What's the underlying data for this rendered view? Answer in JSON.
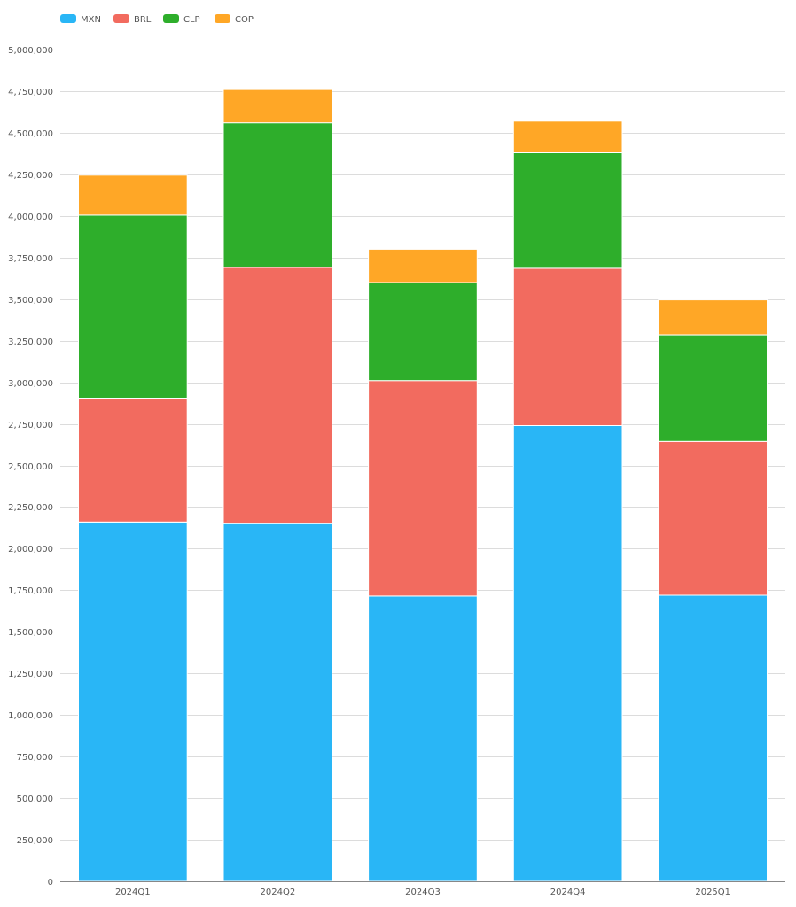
{
  "chart_data": {
    "type": "bar",
    "stacked": true,
    "categories": [
      "2024Q1",
      "2024Q2",
      "2024Q3",
      "2024Q4",
      "2025Q1"
    ],
    "series": [
      {
        "name": "MXN",
        "color": "#29b6f6",
        "values": [
          2160000,
          2150000,
          1715000,
          2740000,
          1720000
        ]
      },
      {
        "name": "BRL",
        "color": "#f26b5f",
        "values": [
          745000,
          1540000,
          1295000,
          945000,
          925000
        ]
      },
      {
        "name": "CLP",
        "color": "#2eae2b",
        "values": [
          1100000,
          870000,
          590000,
          695000,
          640000
        ]
      },
      {
        "name": "COP",
        "color": "#ffa726",
        "values": [
          240000,
          200000,
          200000,
          190000,
          210000
        ]
      }
    ],
    "title": "",
    "xlabel": "",
    "ylabel": "",
    "ylim": [
      0,
      5000000
    ],
    "yticks": [
      0,
      250000,
      500000,
      750000,
      1000000,
      1250000,
      1500000,
      1750000,
      2000000,
      2250000,
      2500000,
      2750000,
      3000000,
      3250000,
      3500000,
      3750000,
      4000000,
      4250000,
      4500000,
      4750000,
      5000000
    ],
    "ytick_labels": [
      "0",
      "250,000",
      "500,000",
      "750,000",
      "1,000,000",
      "1,250,000",
      "1,500,000",
      "1,750,000",
      "2,000,000",
      "2,250,000",
      "2,500,000",
      "2,750,000",
      "3,000,000",
      "3,250,000",
      "3,500,000",
      "3,750,000",
      "4,000,000",
      "4,250,000",
      "4,500,000",
      "4,750,000",
      "5,000,000"
    ],
    "grid": true,
    "legend": "top-left"
  }
}
